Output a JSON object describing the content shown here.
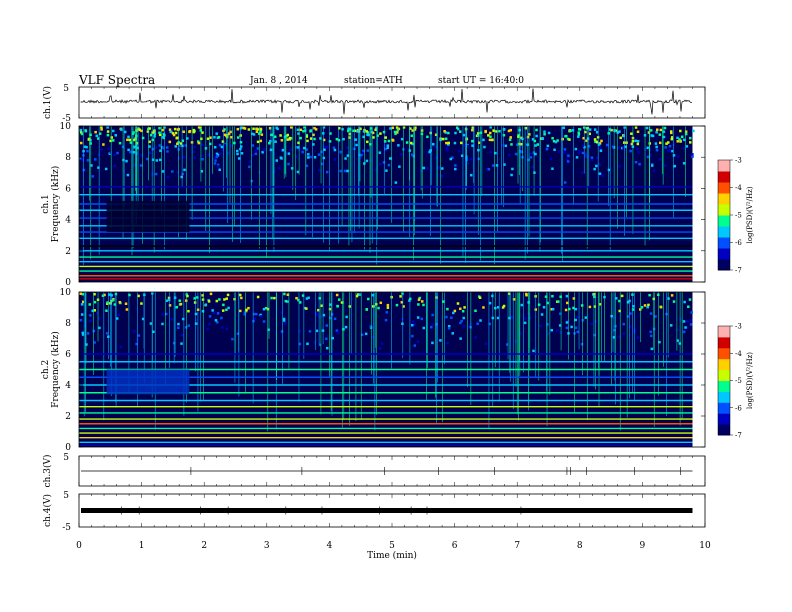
{
  "header": {
    "title": "VLF Spectra",
    "date": "Jan. 8 , 2014",
    "station": "station=ATH",
    "start": "start UT = 16:40:0"
  },
  "colors": {
    "scale": [
      "#000060",
      "#0000c0",
      "#0050ff",
      "#00c8ff",
      "#00ff90",
      "#c8ff00",
      "#ffd000",
      "#ff5000",
      "#d00000",
      "#ffb0b0"
    ],
    "trace": "#000000"
  },
  "chart_data": [
    {
      "type": "line",
      "name": "ch1-voltage",
      "ylabel": "ch.1(V)",
      "ylim": [
        -5,
        5
      ],
      "yticks": [
        "5",
        "-5"
      ],
      "baseline_v": 0,
      "note_values": "noisy trace around ~0 V with spikes"
    },
    {
      "type": "heatmap",
      "name": "ch1-spectrogram",
      "ylabel_top": "ch.1",
      "ylabel": "Frequency (kHz)",
      "ylim": [
        0,
        10
      ],
      "yticks": [
        "0",
        "2",
        "4",
        "6",
        "8",
        "10"
      ],
      "colorbar": {
        "label": "log(PSD)(V²/Hz)",
        "range": [
          -7,
          -3
        ],
        "ticks": [
          "-3",
          "-4",
          "-5",
          "-6",
          "-7"
        ]
      }
    },
    {
      "type": "heatmap",
      "name": "ch2-spectrogram",
      "ylabel_top": "ch.2",
      "ylabel": "Frequency (kHz)",
      "ylim": [
        0,
        10
      ],
      "yticks": [
        "0",
        "2",
        "4",
        "6",
        "8",
        "10"
      ],
      "colorbar": {
        "label": "log(PSD)(V²/Hz)",
        "range": [
          -7,
          -3
        ],
        "ticks": [
          "-3",
          "-4",
          "-5",
          "-6",
          "-7"
        ]
      }
    },
    {
      "type": "line",
      "name": "ch3-voltage",
      "ylabel": "ch.3(V)",
      "ylim": [
        -5,
        5
      ],
      "yticks": [
        "5"
      ],
      "baseline_v": 0
    },
    {
      "type": "line",
      "name": "ch4-voltage",
      "ylabel": "ch.4(V)",
      "ylim": [
        -5,
        5
      ],
      "yticks": [
        "5",
        "-5"
      ],
      "baseline_v": 0
    }
  ],
  "xaxis": {
    "label": "Time (min)",
    "range": [
      0,
      10
    ],
    "ticks": [
      "0",
      "1",
      "2",
      "3",
      "4",
      "5",
      "6",
      "7",
      "8",
      "9",
      "10"
    ]
  }
}
